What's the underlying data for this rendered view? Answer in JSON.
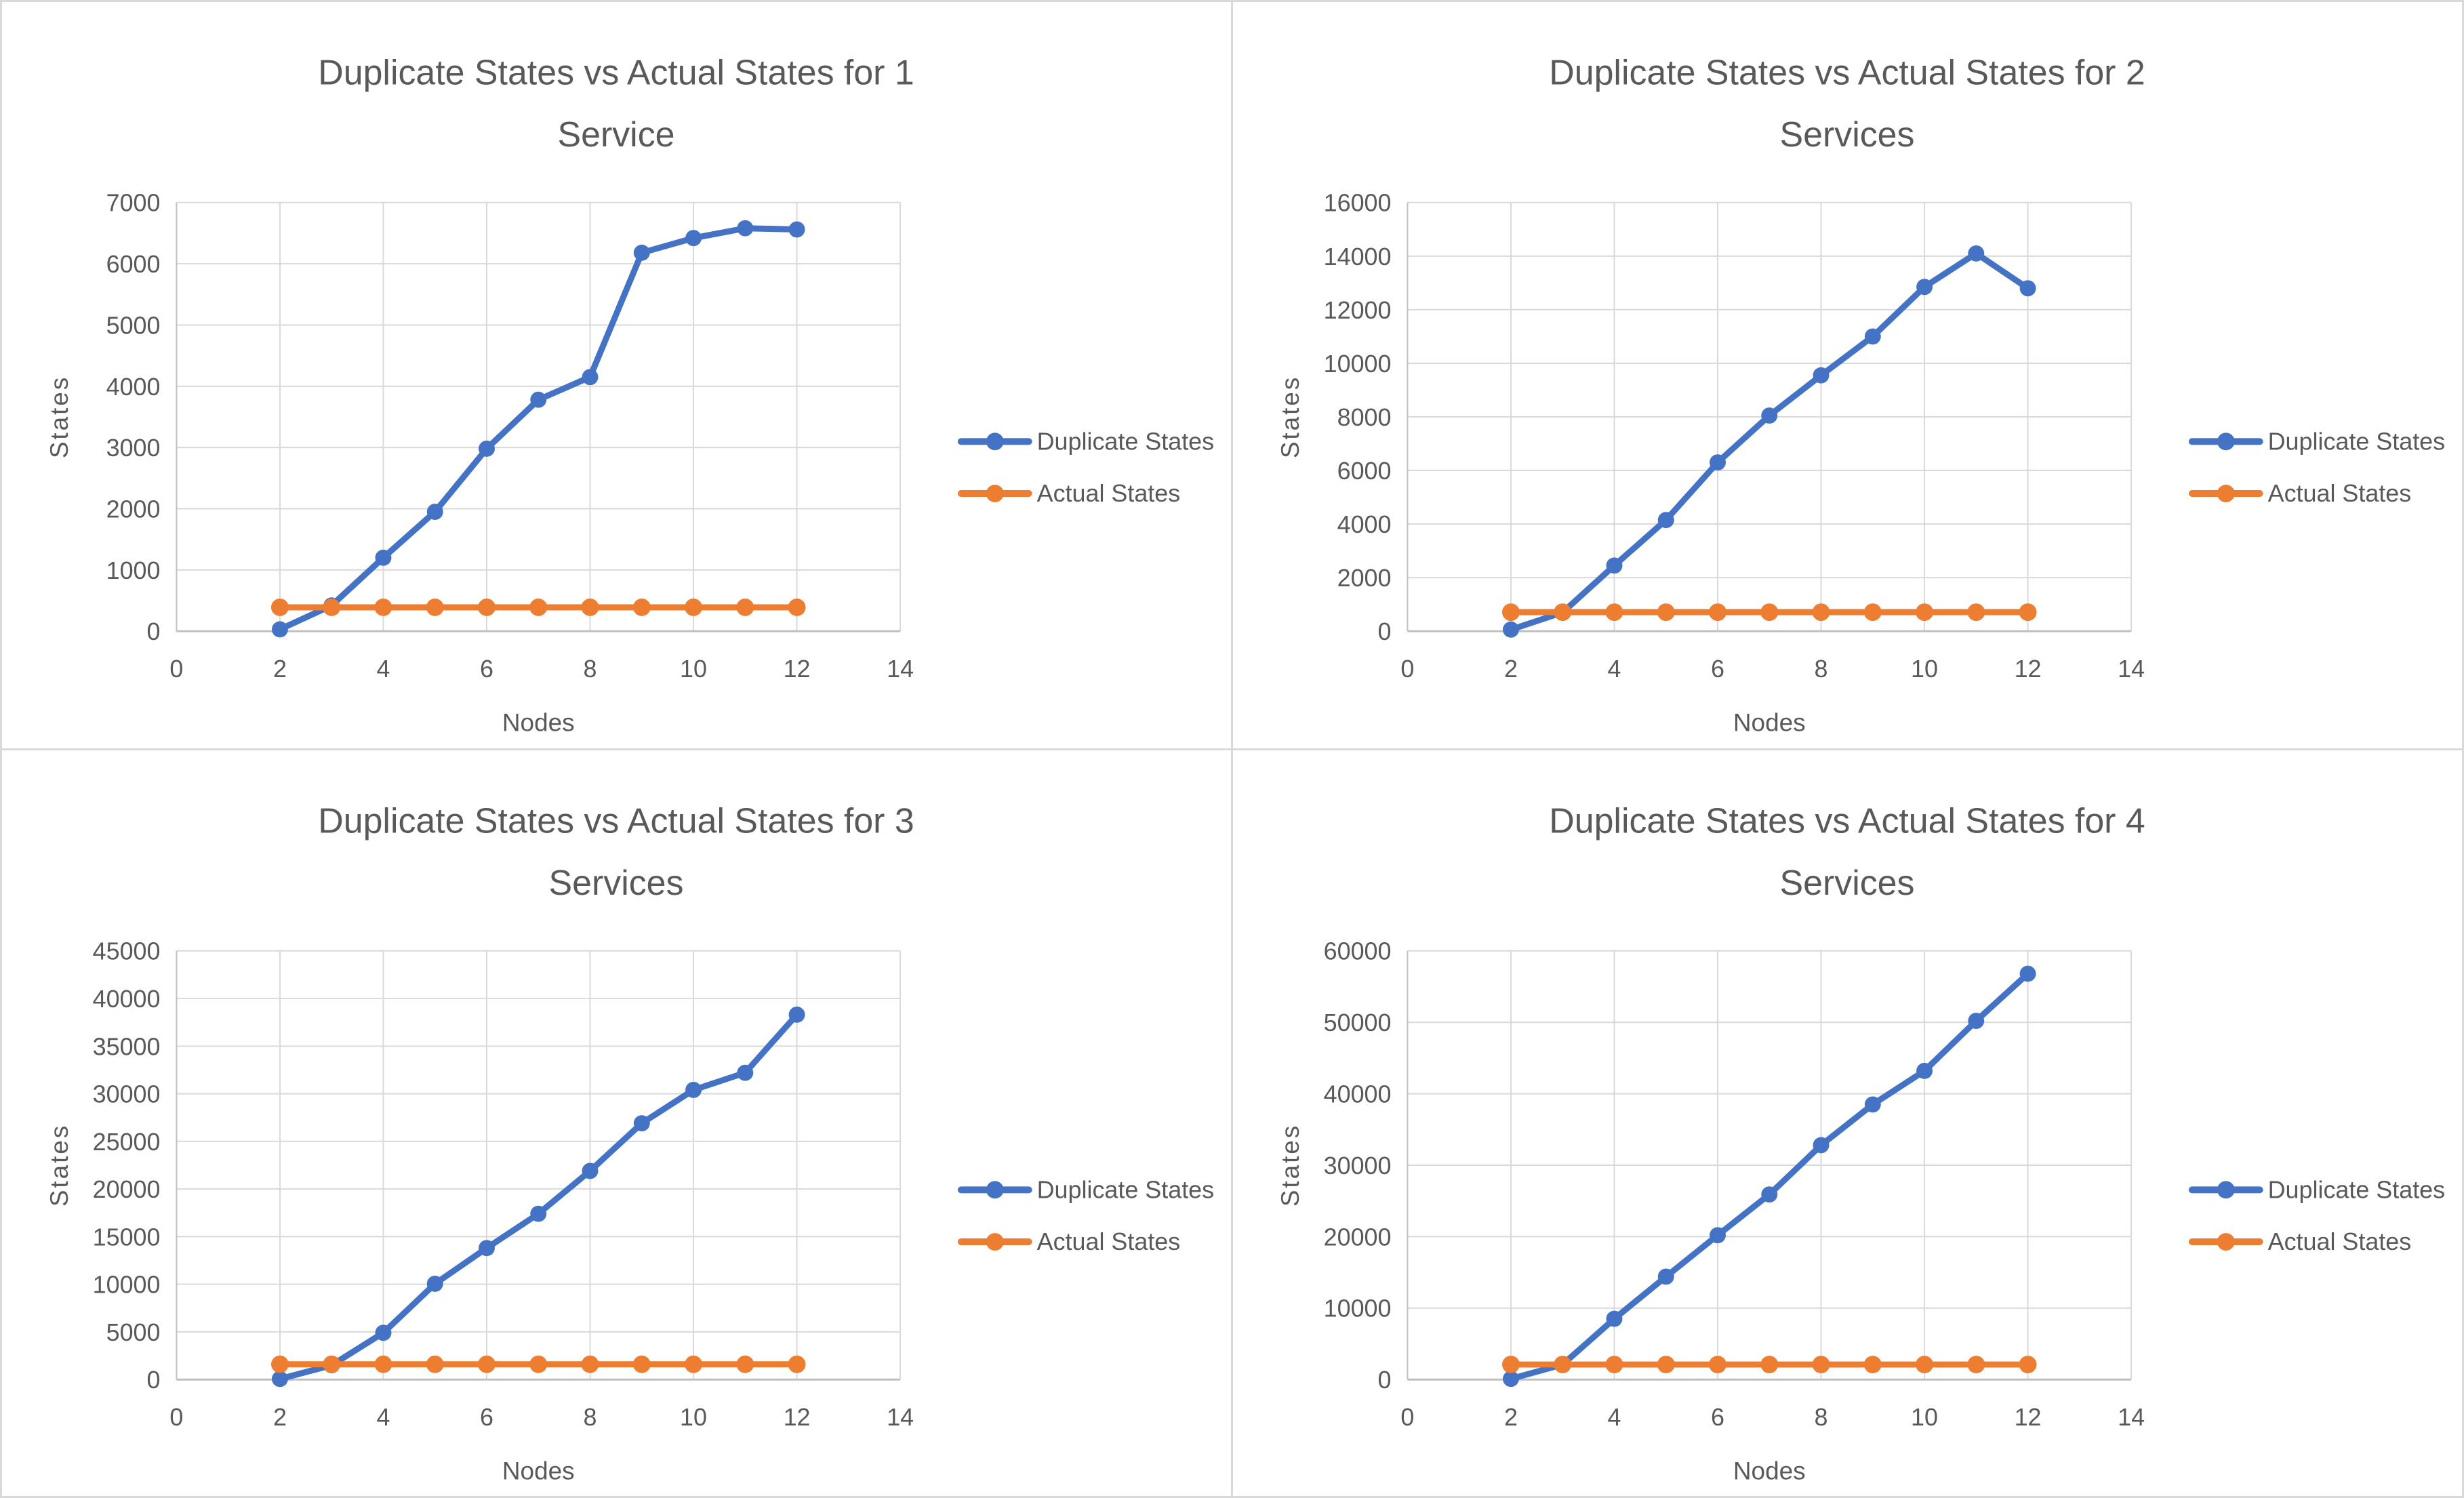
{
  "colors": {
    "duplicate_series": "#4472C4",
    "actual_series": "#ED7D31",
    "text": "#595959",
    "grid": "#D9D9D9",
    "axis": "#BFBFBF",
    "panel_border": "#D9D9D9",
    "panel_background": "#FFFFFF"
  },
  "chart_data": [
    {
      "type": "line",
      "title": "Duplicate States vs Actual States for 1 Service",
      "title_lines": [
        "Duplicate States vs Actual States for 1",
        "Service"
      ],
      "xlabel": "Nodes",
      "ylabel": "States",
      "xlim": [
        0,
        14
      ],
      "xticks": [
        0,
        2,
        4,
        6,
        8,
        10,
        12,
        14
      ],
      "ylim": [
        0,
        7000
      ],
      "ytick_step": 1000,
      "grid": true,
      "legend_position": "right",
      "x": [
        2,
        3,
        4,
        5,
        6,
        7,
        8,
        9,
        10,
        11,
        12
      ],
      "series": [
        {
          "name": "Duplicate States",
          "color": "#4472C4",
          "values": [
            30,
            420,
            1200,
            1950,
            2980,
            3780,
            4150,
            6180,
            6420,
            6580,
            6560
          ]
        },
        {
          "name": "Actual States",
          "color": "#ED7D31",
          "values": [
            390,
            390,
            390,
            390,
            390,
            390,
            390,
            390,
            390,
            390,
            390
          ]
        }
      ]
    },
    {
      "type": "line",
      "title": "Duplicate States vs Actual States for 2 Services",
      "title_lines": [
        "Duplicate States vs Actual States for 2",
        "Services"
      ],
      "xlabel": "Nodes",
      "ylabel": "States",
      "xlim": [
        0,
        14
      ],
      "xticks": [
        0,
        2,
        4,
        6,
        8,
        10,
        12,
        14
      ],
      "ylim": [
        0,
        16000
      ],
      "ytick_step": 2000,
      "grid": true,
      "legend_position": "right",
      "x": [
        2,
        3,
        4,
        5,
        6,
        7,
        8,
        9,
        10,
        11,
        12
      ],
      "series": [
        {
          "name": "Duplicate States",
          "color": "#4472C4",
          "values": [
            60,
            700,
            2450,
            4150,
            6300,
            8050,
            9550,
            11000,
            12850,
            14100,
            12800
          ]
        },
        {
          "name": "Actual States",
          "color": "#ED7D31",
          "values": [
            710,
            710,
            710,
            710,
            710,
            710,
            710,
            710,
            710,
            710,
            710
          ]
        }
      ]
    },
    {
      "type": "line",
      "title": "Duplicate States vs Actual States for 3 Services",
      "title_lines": [
        "Duplicate States vs Actual States for 3",
        "Services"
      ],
      "xlabel": "Nodes",
      "ylabel": "States",
      "xlim": [
        0,
        14
      ],
      "xticks": [
        0,
        2,
        4,
        6,
        8,
        10,
        12,
        14
      ],
      "ylim": [
        0,
        45000
      ],
      "ytick_step": 5000,
      "grid": true,
      "legend_position": "right",
      "x": [
        2,
        3,
        4,
        5,
        6,
        7,
        8,
        9,
        10,
        11,
        12
      ],
      "series": [
        {
          "name": "Duplicate States",
          "color": "#4472C4",
          "values": [
            60,
            1500,
            4900,
            10050,
            13800,
            17400,
            21900,
            26900,
            30400,
            32200,
            38300
          ]
        },
        {
          "name": "Actual States",
          "color": "#ED7D31",
          "values": [
            1600,
            1600,
            1600,
            1600,
            1600,
            1600,
            1600,
            1600,
            1600,
            1600,
            1600
          ]
        }
      ]
    },
    {
      "type": "line",
      "title": "Duplicate States vs Actual States for 4 Services",
      "title_lines": [
        "Duplicate States vs Actual States for 4",
        "Services"
      ],
      "xlabel": "Nodes",
      "ylabel": "States",
      "xlim": [
        0,
        14
      ],
      "xticks": [
        0,
        2,
        4,
        6,
        8,
        10,
        12,
        14
      ],
      "ylim": [
        0,
        60000
      ],
      "ytick_step": 10000,
      "grid": true,
      "legend_position": "right",
      "x": [
        2,
        3,
        4,
        5,
        6,
        7,
        8,
        9,
        10,
        11,
        12
      ],
      "series": [
        {
          "name": "Duplicate States",
          "color": "#4472C4",
          "values": [
            100,
            2100,
            8500,
            14400,
            20200,
            25900,
            32800,
            38500,
            43200,
            50200,
            56800
          ]
        },
        {
          "name": "Actual States",
          "color": "#ED7D31",
          "values": [
            2100,
            2100,
            2100,
            2100,
            2100,
            2100,
            2100,
            2100,
            2100,
            2100,
            2100
          ]
        }
      ]
    }
  ]
}
